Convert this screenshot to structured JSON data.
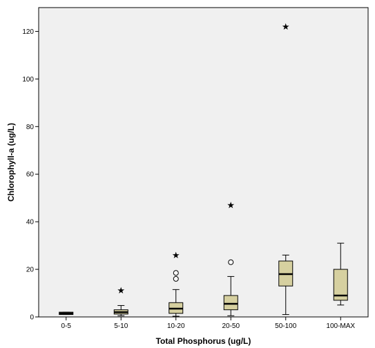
{
  "chart_data": {
    "type": "boxplot",
    "xlabel": "Total Phosphorus (ug/L)",
    "ylabel": "Chlorophyll-a (ug/L)",
    "ylim": [
      0,
      130
    ],
    "yticks": [
      0,
      20,
      40,
      60,
      80,
      100,
      120
    ],
    "grid": false,
    "colors": {
      "background": "#f0f0f0",
      "box_fill": "#d6d0a0",
      "stroke": "#000000"
    },
    "categories": [
      "0-5",
      "5-10",
      "10-20",
      "20-50",
      "50-100",
      "100-MAX"
    ],
    "boxes": [
      {
        "category": "0-5",
        "whisker_low": 1.0,
        "q1": 1.0,
        "median": 1.5,
        "q3": 2.0,
        "whisker_high": 2.0,
        "outliers_circle": [],
        "outliers_star": []
      },
      {
        "category": "5-10",
        "whisker_low": 0.5,
        "q1": 1.2,
        "median": 2.0,
        "q3": 3.0,
        "whisker_high": 4.8,
        "outliers_circle": [],
        "outliers_star": [
          11.2
        ]
      },
      {
        "category": "10-20",
        "whisker_low": 0.3,
        "q1": 1.5,
        "median": 3.5,
        "q3": 6.0,
        "whisker_high": 11.5,
        "outliers_circle": [
          16.0,
          18.5
        ],
        "outliers_star": [
          26.0
        ]
      },
      {
        "category": "20-50",
        "whisker_low": 0.5,
        "q1": 3.0,
        "median": 5.5,
        "q3": 9.0,
        "whisker_high": 17.0,
        "outliers_circle": [
          23.0
        ],
        "outliers_star": [
          47.0
        ]
      },
      {
        "category": "50-100",
        "whisker_low": 1.0,
        "q1": 13.0,
        "median": 18.0,
        "q3": 23.5,
        "whisker_high": 26.0,
        "outliers_circle": [],
        "outliers_star": [
          122.0
        ]
      },
      {
        "category": "100-MAX",
        "whisker_low": 5.0,
        "q1": 7.0,
        "median": 9.0,
        "q3": 20.0,
        "whisker_high": 31.0,
        "outliers_circle": [],
        "outliers_star": []
      }
    ]
  }
}
